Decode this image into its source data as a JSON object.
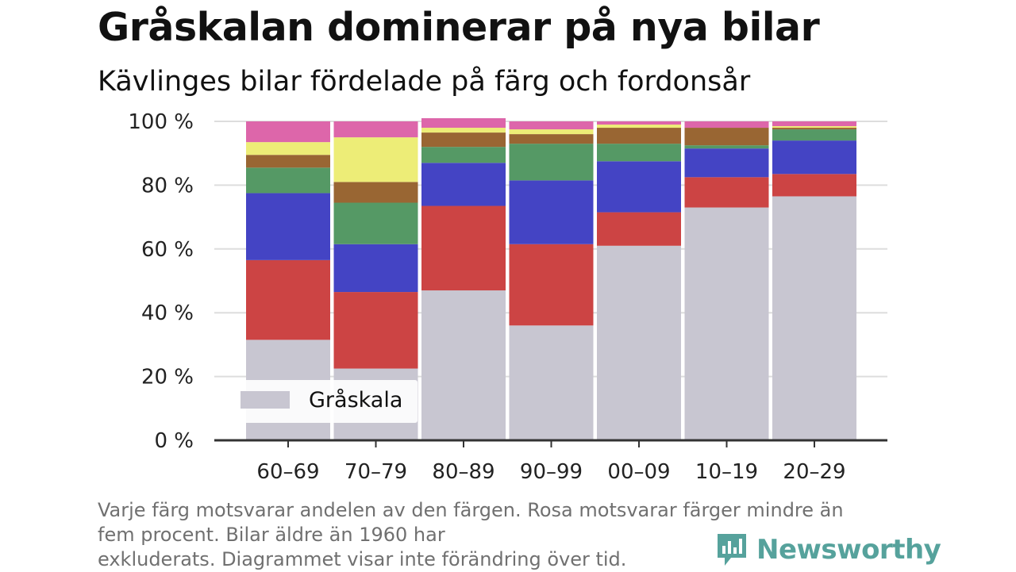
{
  "title": "Gråskalan dominerar på nya bilar",
  "subtitle": "Kävlinges bilar fördelade på färg och fordonsår",
  "note_lines": [
    "Varje färg motsvarar andelen av den färgen. Rosa motsvarar färger mindre än",
    "fem procent. Bilar äldre än 1960 har",
    "exkluderats. Diagrammet visar inte förändring över tid."
  ],
  "brand": "Newsworthy",
  "chart_data": {
    "type": "bar",
    "stacked": true,
    "categories": [
      "60–69",
      "70–79",
      "80–89",
      "90–99",
      "00–09",
      "10–19",
      "20–29"
    ],
    "y_ticks": [
      "0 %",
      "20 %",
      "40 %",
      "60 %",
      "80 %",
      "100 %"
    ],
    "ylim": [
      0,
      100
    ],
    "grid": true,
    "legend": {
      "position": "bottom-left",
      "entries": [
        "Gråskala"
      ]
    },
    "series": [
      {
        "name": "Gråskala",
        "color": "#c8c6d1",
        "values": [
          31.5,
          22.5,
          47,
          36,
          61,
          73,
          76.5
        ]
      },
      {
        "color": "#cc4444",
        "values": [
          25,
          24,
          26.5,
          25.5,
          10.5,
          9.5,
          7
        ]
      },
      {
        "color": "#4444c4",
        "values": [
          21,
          15,
          13.5,
          20,
          16,
          9,
          10.5
        ]
      },
      {
        "color": "#559965",
        "values": [
          8,
          13,
          5,
          11.5,
          5.5,
          1,
          3.5
        ]
      },
      {
        "color": "#996633",
        "values": [
          4,
          6.5,
          4.5,
          3,
          5,
          5.5,
          0.5
        ]
      },
      {
        "color": "#eded77",
        "values": [
          4,
          14,
          1.5,
          1.5,
          1,
          0,
          0.5
        ]
      },
      {
        "color": "#dd66aa",
        "values": [
          6.5,
          5,
          3,
          2.5,
          1,
          2,
          1.5
        ]
      }
    ]
  }
}
